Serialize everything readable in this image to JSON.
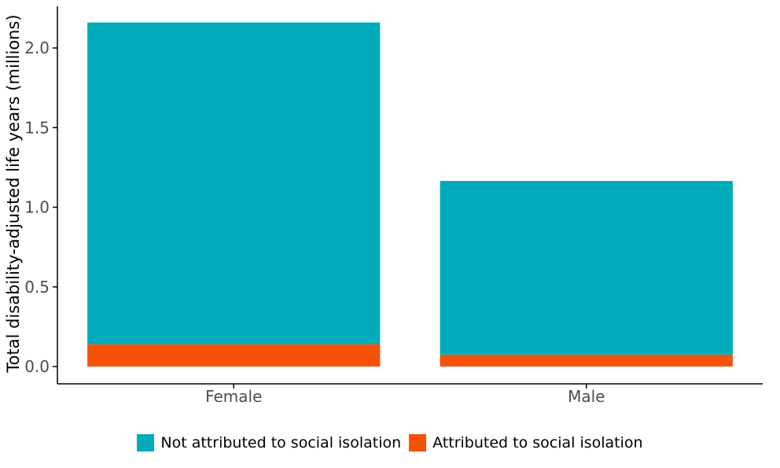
{
  "chart_data": {
    "type": "bar",
    "stacked": true,
    "title": "",
    "xlabel": "",
    "ylabel": "Total disability-adjusted life years (millions)",
    "categories": [
      "Female",
      "Male"
    ],
    "series": [
      {
        "name": "Attributed to social isolation",
        "color": "#F4510B",
        "values": [
          0.14,
          0.075
        ]
      },
      {
        "name": "Not attributed to social isolation",
        "color": "#00ABBB",
        "values": [
          2.02,
          1.09
        ]
      }
    ],
    "ylim": [
      0,
      2.2
    ],
    "yticks": [
      0.0,
      0.5,
      1.0,
      1.5,
      2.0
    ],
    "ytick_labels": [
      "0.0",
      "0.5",
      "1.0",
      "1.5",
      "2.0"
    ],
    "grid": false,
    "legend_position": "bottom"
  },
  "legend": {
    "items": [
      {
        "label": "Not attributed to social isolation",
        "color": "#00ABBB"
      },
      {
        "label": "Attributed to social isolation",
        "color": "#F4510B"
      }
    ]
  }
}
